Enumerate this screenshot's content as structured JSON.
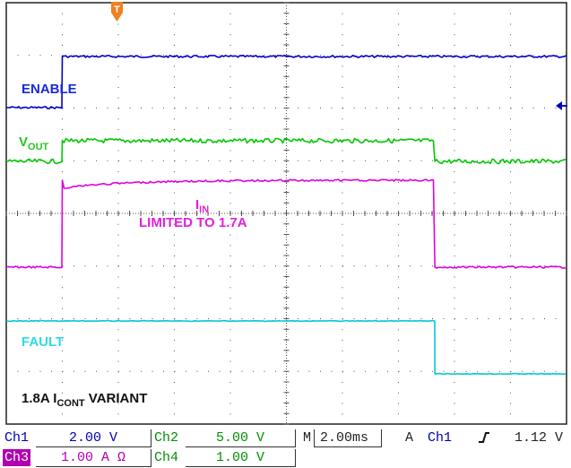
{
  "colors": {
    "ch1": "#0000c8",
    "ch2": "#00c800",
    "ch3": "#e000e0",
    "ch4": "#00c8d8",
    "trigger_marker": "#f08020",
    "grid": "#555555"
  },
  "trigger_marker_label": "T",
  "trace_labels": {
    "enable": "ENABLE",
    "vout_main": "V",
    "vout_sub": "OUT",
    "iin_main": "I",
    "iin_sub": "IN",
    "iin_note": "LIMITED TO 1.7A",
    "fault": "FAULT",
    "variant_prefix": "1.8A I",
    "variant_sub": "CONT",
    "variant_suffix": " VARIANT"
  },
  "readout": {
    "ch1_tag": "Ch1",
    "ch1_scale": "2.00 V",
    "ch2_tag": "Ch2",
    "ch2_scale": "5.00 V",
    "timebase_tag": "M",
    "timebase": "2.00ms",
    "trigger_tag": "A",
    "trigger_source": "Ch1",
    "trigger_slope_icon": "rising-edge-icon",
    "trigger_level": "1.12 V",
    "ch3_tag": "Ch3",
    "ch3_scale": "1.00 A Ω",
    "ch4_tag": "Ch4",
    "ch4_scale": "1.00 V"
  },
  "chart_data": {
    "type": "line",
    "x_unit": "ms",
    "x_divisions": 10,
    "y_divisions": 8,
    "series": [
      {
        "name": "ENABLE",
        "channel": "Ch1",
        "x": [
          0,
          2.0,
          2.0,
          20
        ],
        "y": [
          0,
          0,
          1,
          1
        ]
      },
      {
        "name": "VOUT",
        "channel": "Ch2",
        "x": [
          0,
          2.0,
          2.0,
          15.3,
          15.3,
          20
        ],
        "y": [
          0,
          0,
          1,
          1,
          0,
          0
        ]
      },
      {
        "name": "IIN",
        "channel": "Ch3",
        "x": [
          0,
          2.0,
          2.0,
          15.3,
          15.3,
          20
        ],
        "y": [
          0,
          0,
          1.7,
          1.7,
          0,
          0
        ]
      },
      {
        "name": "FAULT",
        "channel": "Ch4",
        "x": [
          0,
          15.3,
          15.3,
          20
        ],
        "y": [
          1,
          1,
          0,
          0
        ]
      }
    ]
  }
}
